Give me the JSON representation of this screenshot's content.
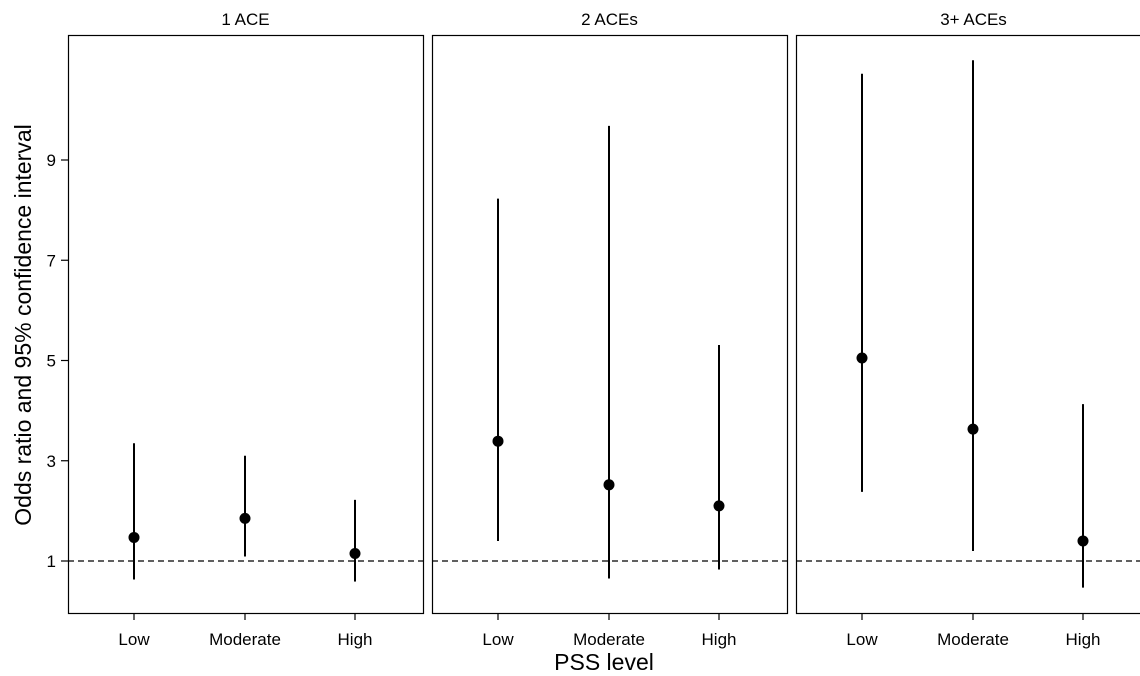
{
  "chart_data": {
    "type": "scatter",
    "subtype": "point-range faceted panels",
    "ylabel": "Odds ratio and 95% confidence interval",
    "xlabel": "PSS level",
    "categories": [
      "Low",
      "Moderate",
      "High"
    ],
    "yticks": [
      1,
      3,
      5,
      7,
      9
    ],
    "ylim": [
      0.0,
      11.5
    ],
    "reference_line": {
      "y": 1,
      "style": "dashed"
    },
    "grid": false,
    "legend": "none",
    "colors": {
      "marker": "#000000",
      "line": "#000000",
      "frame": "#000000"
    },
    "panels": [
      {
        "title": "1 ACE",
        "points": [
          {
            "category": "Low",
            "or": 1.47,
            "lower": 0.63,
            "upper": 3.35
          },
          {
            "category": "Moderate",
            "or": 1.85,
            "lower": 1.09,
            "upper": 3.1
          },
          {
            "category": "High",
            "or": 1.15,
            "lower": 0.59,
            "upper": 2.22
          }
        ]
      },
      {
        "title": "2 ACEs",
        "points": [
          {
            "category": "Low",
            "or": 3.39,
            "lower": 1.4,
            "upper": 8.23
          },
          {
            "category": "Moderate",
            "or": 2.52,
            "lower": 0.65,
            "upper": 9.68
          },
          {
            "category": "High",
            "or": 2.1,
            "lower": 0.83,
            "upper": 5.31
          }
        ]
      },
      {
        "title": "3+ ACEs",
        "points": [
          {
            "category": "Low",
            "or": 5.05,
            "lower": 2.38,
            "upper": 10.72
          },
          {
            "category": "Moderate",
            "or": 3.63,
            "lower": 1.2,
            "upper": 10.99
          },
          {
            "category": "High",
            "or": 1.4,
            "lower": 0.47,
            "upper": 4.13
          }
        ]
      }
    ]
  }
}
